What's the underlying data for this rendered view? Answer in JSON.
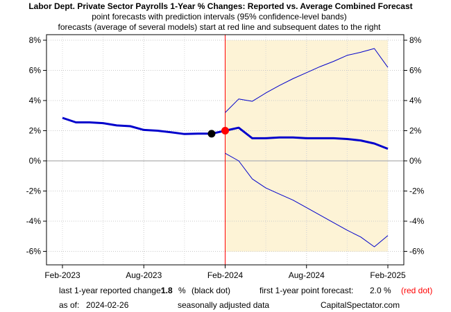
{
  "chart_data": {
    "type": "line",
    "title": "Labor Dept. Private Sector Payrolls 1-Year % Changes: Reported vs. Average Combined Forecast",
    "subtitle_1": "point forecasts with prediction intervals (95% confidence-level bands)",
    "subtitle_2": "forecasts (average of several models) start at red line and subsequent dates to the right",
    "x_ticks": [
      "Feb-2023",
      "Aug-2023",
      "Feb-2024",
      "Aug-2024",
      "Feb-2025"
    ],
    "y_ticks": [
      "8%",
      "6%",
      "4%",
      "2%",
      "0%",
      "-2%",
      "-4%",
      "-6%"
    ],
    "ylim": [
      -6.6,
      8.2
    ],
    "grid": true,
    "forecast_start": "2024-02",
    "series": [
      {
        "name": "reported",
        "color": "#0000cc",
        "points": [
          [
            "2023-02",
            2.85
          ],
          [
            "2023-03",
            2.55
          ],
          [
            "2023-04",
            2.55
          ],
          [
            "2023-05",
            2.5
          ],
          [
            "2023-06",
            2.35
          ],
          [
            "2023-07",
            2.3
          ],
          [
            "2023-08",
            2.05
          ],
          [
            "2023-09",
            2.0
          ],
          [
            "2023-10",
            1.9
          ],
          [
            "2023-11",
            1.78
          ],
          [
            "2023-12",
            1.8
          ],
          [
            "2024-01",
            1.8
          ]
        ]
      },
      {
        "name": "point forecast",
        "color": "#0000cc",
        "points": [
          [
            "2024-01",
            1.8
          ],
          [
            "2024-02",
            2.0
          ],
          [
            "2024-03",
            2.2
          ],
          [
            "2024-04",
            1.5
          ],
          [
            "2024-05",
            1.5
          ],
          [
            "2024-06",
            1.55
          ],
          [
            "2024-07",
            1.55
          ],
          [
            "2024-08",
            1.5
          ],
          [
            "2024-09",
            1.5
          ],
          [
            "2024-10",
            1.5
          ],
          [
            "2024-11",
            1.45
          ],
          [
            "2024-12",
            1.35
          ],
          [
            "2025-01",
            1.15
          ],
          [
            "2025-02",
            0.8
          ]
        ]
      },
      {
        "name": "upper band",
        "color": "#0000cc",
        "points": [
          [
            "2024-02",
            3.2
          ],
          [
            "2024-03",
            4.1
          ],
          [
            "2024-04",
            3.95
          ],
          [
            "2024-05",
            4.5
          ],
          [
            "2024-06",
            5.0
          ],
          [
            "2024-07",
            5.45
          ],
          [
            "2024-08",
            5.85
          ],
          [
            "2024-09",
            6.25
          ],
          [
            "2024-10",
            6.6
          ],
          [
            "2024-11",
            7.0
          ],
          [
            "2024-12",
            7.2
          ],
          [
            "2025-01",
            7.45
          ],
          [
            "2025-02",
            6.2
          ]
        ]
      },
      {
        "name": "lower band",
        "color": "#0000cc",
        "points": [
          [
            "2024-02",
            0.5
          ],
          [
            "2024-03",
            0.0
          ],
          [
            "2024-04",
            -1.2
          ],
          [
            "2024-05",
            -1.8
          ],
          [
            "2024-06",
            -2.2
          ],
          [
            "2024-07",
            -2.6
          ],
          [
            "2024-08",
            -3.1
          ],
          [
            "2024-09",
            -3.6
          ],
          [
            "2024-10",
            -4.1
          ],
          [
            "2024-11",
            -4.6
          ],
          [
            "2024-12",
            -5.05
          ],
          [
            "2025-01",
            -5.7
          ],
          [
            "2025-02",
            -4.95
          ]
        ]
      }
    ],
    "markers": [
      {
        "x": "2024-01",
        "y": 1.8,
        "color": "#000000"
      },
      {
        "x": "2024-02",
        "y": 2.0,
        "color": "#ff0000"
      }
    ]
  },
  "footer": {
    "reported_label": "last 1-year reported change:",
    "reported_value": "1.8",
    "reported_unit": "%",
    "reported_note": "(black dot)",
    "forecast_label": "first 1-year point forecast:",
    "forecast_value": "2.0 %",
    "forecast_note": "(red dot)",
    "asof_label": "as of:",
    "asof_date": "2024-02-26",
    "seasonal_note": "seasonally adjusted data",
    "source": "CapitalSpectator.com"
  }
}
